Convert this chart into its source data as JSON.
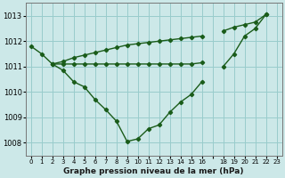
{
  "ylim": [
    1007.5,
    1013.5
  ],
  "yticks": [
    1008,
    1009,
    1010,
    1011,
    1012,
    1013
  ],
  "bg_color": "#cce8e8",
  "line_color": "#1a5c1a",
  "grid_color": "#99cccc",
  "xlabel": "Graphe pression niveau de la mer (hPa)",
  "xtick_labels": [
    "0",
    "1",
    "2",
    "3",
    "4",
    "5",
    "6",
    "7",
    "8",
    "9",
    "10",
    "11",
    "12",
    "13",
    "14",
    "15",
    "16",
    "",
    "18",
    "19",
    "20",
    "21",
    "22",
    "23"
  ],
  "y_main": [
    1011.8,
    1011.5,
    1011.1,
    1010.85,
    1010.4,
    1010.2,
    1009.7,
    1009.3,
    1008.85,
    1008.05,
    1008.15,
    1008.55,
    1008.7,
    1009.2,
    1009.6,
    1009.9,
    1010.4,
    null,
    1011.0,
    1011.5,
    1012.2,
    1012.5,
    1013.05,
    null
  ],
  "y_rise": [
    null,
    null,
    1011.1,
    1011.2,
    1011.35,
    1011.45,
    1011.55,
    1011.65,
    1011.75,
    1011.85,
    1011.9,
    1011.95,
    1012.0,
    1012.05,
    1012.1,
    1012.15,
    1012.2,
    null,
    1012.4,
    1012.55,
    1012.65,
    1012.75,
    1013.05,
    null
  ],
  "y_flat": [
    null,
    null,
    1011.1,
    1011.1,
    1011.1,
    1011.1,
    1011.1,
    1011.1,
    1011.1,
    1011.1,
    1011.1,
    1011.1,
    1011.1,
    1011.1,
    1011.1,
    1011.1,
    1011.15,
    null,
    null,
    null,
    null,
    null,
    null,
    null
  ]
}
